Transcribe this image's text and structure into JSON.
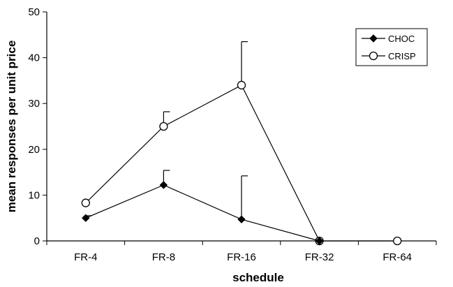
{
  "chart_data": {
    "type": "line",
    "xlabel": "schedule",
    "ylabel": "mean responses per unit price",
    "categories": [
      "FR-4",
      "FR-8",
      "FR-16",
      "FR-32",
      "FR-64"
    ],
    "ylim": [
      0,
      50
    ],
    "yticks": [
      0,
      10,
      20,
      30,
      40,
      50
    ],
    "grid": false,
    "legend_position": "top-right",
    "series": [
      {
        "name": "CHOC",
        "marker": "filled-diamond",
        "values": [
          5.0,
          12.2,
          4.7,
          0.0,
          null
        ],
        "error_plus": [
          0.5,
          3.2,
          9.5,
          0,
          null
        ]
      },
      {
        "name": "CRISP",
        "marker": "open-circle",
        "values": [
          8.3,
          25.0,
          34.0,
          0.0,
          0.0
        ],
        "error_plus": [
          0,
          3.2,
          9.5,
          0,
          0
        ]
      }
    ]
  }
}
